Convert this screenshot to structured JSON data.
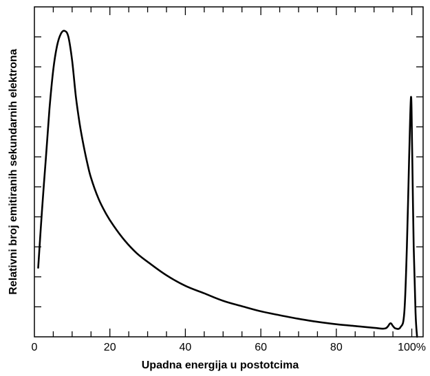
{
  "chart_data": {
    "type": "line",
    "xlabel": "Upadna energija u postotcima",
    "ylabel": "Relativni broj emitiranih sekundarnih elektrona",
    "x_tick_labels": [
      "0",
      "20",
      "40",
      "60",
      "80",
      "100%"
    ],
    "x_tick_values": [
      0,
      20,
      40,
      60,
      80,
      100
    ],
    "xlim": [
      0,
      103
    ],
    "ylim": [
      0,
      11
    ],
    "y_tick_labels_shown": false,
    "grid": false,
    "legend": "none",
    "series": [
      {
        "x": [
          1,
          2,
          3,
          4,
          5,
          6,
          7,
          8,
          9,
          10,
          11,
          12,
          13,
          14,
          15,
          17,
          19,
          21,
          24,
          27,
          30,
          35,
          40,
          45,
          50,
          55,
          60,
          65,
          70,
          75,
          80,
          85,
          90,
          93,
          94.3,
          95,
          95.7,
          97,
          98,
          98.7,
          99.3,
          99.8,
          100.1,
          100.5,
          101,
          101.4
        ],
        "y": [
          2.3,
          4.2,
          5.9,
          7.6,
          8.9,
          9.7,
          10.1,
          10.2,
          10.0,
          9.2,
          8.0,
          7.1,
          6.4,
          5.8,
          5.3,
          4.6,
          4.1,
          3.7,
          3.2,
          2.8,
          2.5,
          2.05,
          1.7,
          1.45,
          1.2,
          1.02,
          0.85,
          0.72,
          0.6,
          0.5,
          0.42,
          0.36,
          0.3,
          0.28,
          0.45,
          0.36,
          0.28,
          0.32,
          0.8,
          3.0,
          6.0,
          8.0,
          6.2,
          3.0,
          0.8,
          0.0
        ],
        "color": "#000000"
      }
    ]
  }
}
